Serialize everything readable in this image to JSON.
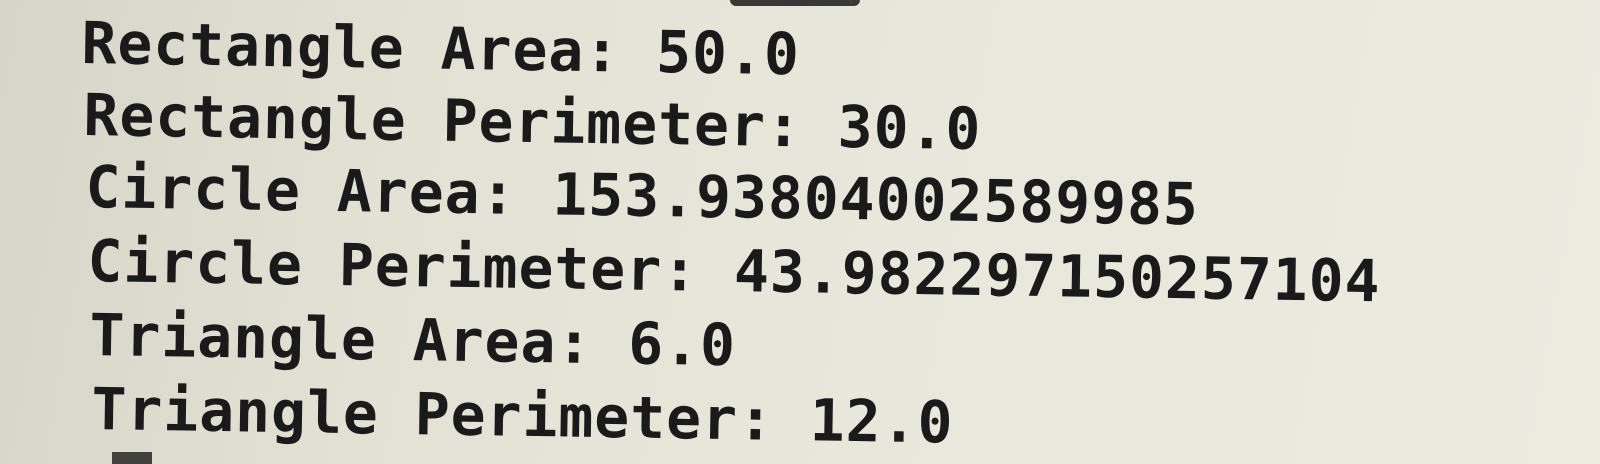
{
  "terminal": {
    "lines": [
      "Rectangle Area: 50.0",
      "Rectangle Perimeter: 30.0",
      "Circle Area: 153.93804002589985",
      "Circle Perimeter: 43.982297150257104",
      "Triangle Area: 6.0",
      "Triangle Perimeter: 12.0"
    ]
  }
}
